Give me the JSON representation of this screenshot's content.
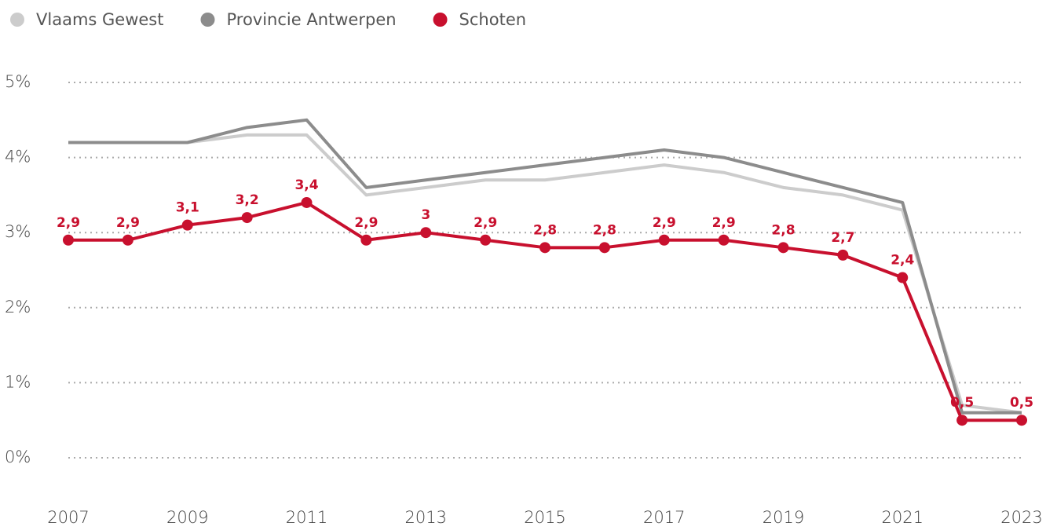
{
  "chart_data": {
    "type": "line",
    "x": [
      2007,
      2008,
      2009,
      2010,
      2011,
      2012,
      2013,
      2014,
      2015,
      2016,
      2017,
      2018,
      2019,
      2020,
      2021,
      2022,
      2023
    ],
    "xlim": [
      2007,
      2023
    ],
    "xticks": [
      2007,
      2009,
      2011,
      2013,
      2015,
      2017,
      2019,
      2021,
      2023
    ],
    "ylim": [
      0,
      5
    ],
    "yticks": [
      {
        "value": 0,
        "label": "0%"
      },
      {
        "value": 1,
        "label": "1%"
      },
      {
        "value": 2,
        "label": "2%"
      },
      {
        "value": 3,
        "label": "3%"
      },
      {
        "value": 4,
        "label": "4%"
      },
      {
        "value": 5,
        "label": "5%"
      }
    ],
    "grid": true,
    "legend": "top-left",
    "series": [
      {
        "name": "Vlaams Gewest",
        "color": "#cccccc",
        "values": [
          4.2,
          4.2,
          4.2,
          4.3,
          4.3,
          3.5,
          3.6,
          3.7,
          3.7,
          3.8,
          3.9,
          3.8,
          3.6,
          3.5,
          3.3,
          0.7,
          0.6
        ]
      },
      {
        "name": "Provincie Antwerpen",
        "color": "#8c8c8c",
        "values": [
          4.2,
          4.2,
          4.2,
          4.4,
          4.5,
          3.6,
          3.7,
          3.8,
          3.9,
          4.0,
          4.1,
          4.0,
          3.8,
          3.6,
          3.4,
          0.6,
          0.6
        ]
      },
      {
        "name": "Schoten",
        "color": "#c8102e",
        "values": [
          2.9,
          2.9,
          3.1,
          3.2,
          3.4,
          2.9,
          3,
          2.9,
          2.8,
          2.8,
          2.9,
          2.9,
          2.8,
          2.7,
          2.4,
          0.5,
          0.5
        ],
        "value_labels": [
          "2,9",
          "2,9",
          "3,1",
          "3,2",
          "3,4",
          "2,9",
          "3",
          "2,9",
          "2,8",
          "2,8",
          "2,9",
          "2,9",
          "2,8",
          "2,7",
          "2,4",
          "0,5",
          "0,5"
        ]
      }
    ]
  }
}
